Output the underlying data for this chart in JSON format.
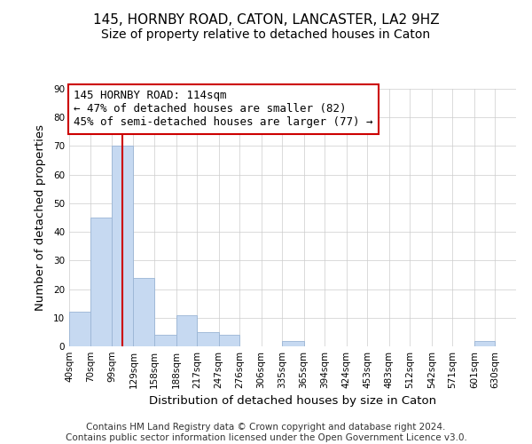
{
  "title": "145, HORNBY ROAD, CATON, LANCASTER, LA2 9HZ",
  "subtitle": "Size of property relative to detached houses in Caton",
  "xlabel": "Distribution of detached houses by size in Caton",
  "ylabel": "Number of detached properties",
  "footer_line1": "Contains HM Land Registry data © Crown copyright and database right 2024.",
  "footer_line2": "Contains public sector information licensed under the Open Government Licence v3.0.",
  "annotation_line1": "145 HORNBY ROAD: 114sqm",
  "annotation_line2": "← 47% of detached houses are smaller (82)",
  "annotation_line3": "45% of semi-detached houses are larger (77) →",
  "bar_edges": [
    40,
    70,
    99,
    129,
    158,
    188,
    217,
    247,
    276,
    306,
    335,
    365,
    394,
    424,
    453,
    483,
    512,
    542,
    571,
    601,
    630
  ],
  "bar_heights": [
    12,
    45,
    70,
    24,
    4,
    11,
    5,
    4,
    0,
    0,
    2,
    0,
    0,
    0,
    0,
    0,
    0,
    0,
    0,
    2,
    0
  ],
  "bar_color": "#c6d9f1",
  "bar_edge_color": "#9ab5d5",
  "vline_x": 114,
  "vline_color": "#cc0000",
  "annotation_box_color": "#cc0000",
  "annotation_box_fill": "#ffffff",
  "ylim": [
    0,
    90
  ],
  "yticks": [
    0,
    10,
    20,
    30,
    40,
    50,
    60,
    70,
    80,
    90
  ],
  "tick_labels": [
    "40sqm",
    "70sqm",
    "99sqm",
    "129sqm",
    "158sqm",
    "188sqm",
    "217sqm",
    "247sqm",
    "276sqm",
    "306sqm",
    "335sqm",
    "365sqm",
    "394sqm",
    "424sqm",
    "453sqm",
    "483sqm",
    "512sqm",
    "542sqm",
    "571sqm",
    "601sqm",
    "630sqm"
  ],
  "background_color": "#ffffff",
  "grid_color": "#cccccc",
  "title_fontsize": 11,
  "subtitle_fontsize": 10,
  "axis_label_fontsize": 9.5,
  "tick_fontsize": 7.5,
  "annotation_fontsize": 9,
  "footer_fontsize": 7.5
}
